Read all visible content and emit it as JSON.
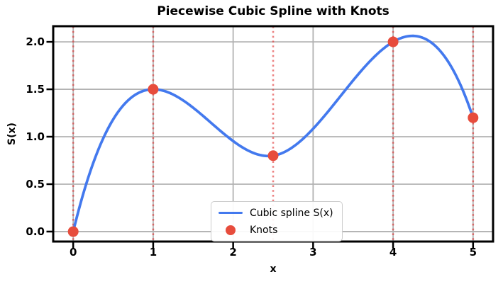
{
  "chart_data": {
    "type": "line",
    "title": "Piecewise Cubic Spline with Knots",
    "xlabel": "x",
    "ylabel": "S(x)",
    "xlim": [
      -0.25,
      5.25
    ],
    "ylim": [
      -0.105,
      2.165
    ],
    "x_ticks": [
      0,
      1,
      2,
      3,
      4,
      5
    ],
    "x_tick_labels": [
      "0",
      "1",
      "2",
      "3",
      "4",
      "5"
    ],
    "y_ticks": [
      0.0,
      0.5,
      1.0,
      1.5,
      2.0
    ],
    "y_tick_labels": [
      "0.0",
      "0.5",
      "1.0",
      "1.5",
      "2.0"
    ],
    "grid": true,
    "series": [
      {
        "name": "Cubic spline S(x)",
        "type": "spline-not-a-knot",
        "color": "#4379ee",
        "linewidth": 3.7,
        "knots_x": [
          0,
          1,
          2.5,
          4,
          5
        ],
        "knots_y": [
          0.0,
          1.5,
          0.8,
          2.0,
          1.2
        ]
      },
      {
        "name": "Knots",
        "type": "scatter",
        "color": "#e74c3c",
        "marker": "circle",
        "marker_radius": 7.5,
        "x": [
          0,
          1,
          2.5,
          4,
          5
        ],
        "y": [
          0.0,
          1.5,
          0.8,
          2.0,
          1.2
        ]
      }
    ],
    "knot_lines": {
      "x": [
        0,
        1,
        2.5,
        4,
        5
      ],
      "color": "#e03030",
      "style": "dotted",
      "opacity": 0.6,
      "linewidth": 2.6
    },
    "legend": {
      "position": "lower center",
      "items": [
        {
          "label": "Cubic spline S(x)",
          "swatch": "line",
          "color": "#4379ee"
        },
        {
          "label": "Knots",
          "swatch": "dot",
          "color": "#e74c3c"
        }
      ]
    },
    "colors": {
      "grid": "#b2b2b2",
      "spine": "#000000",
      "tick": "#000000",
      "background": "#ffffff"
    }
  }
}
